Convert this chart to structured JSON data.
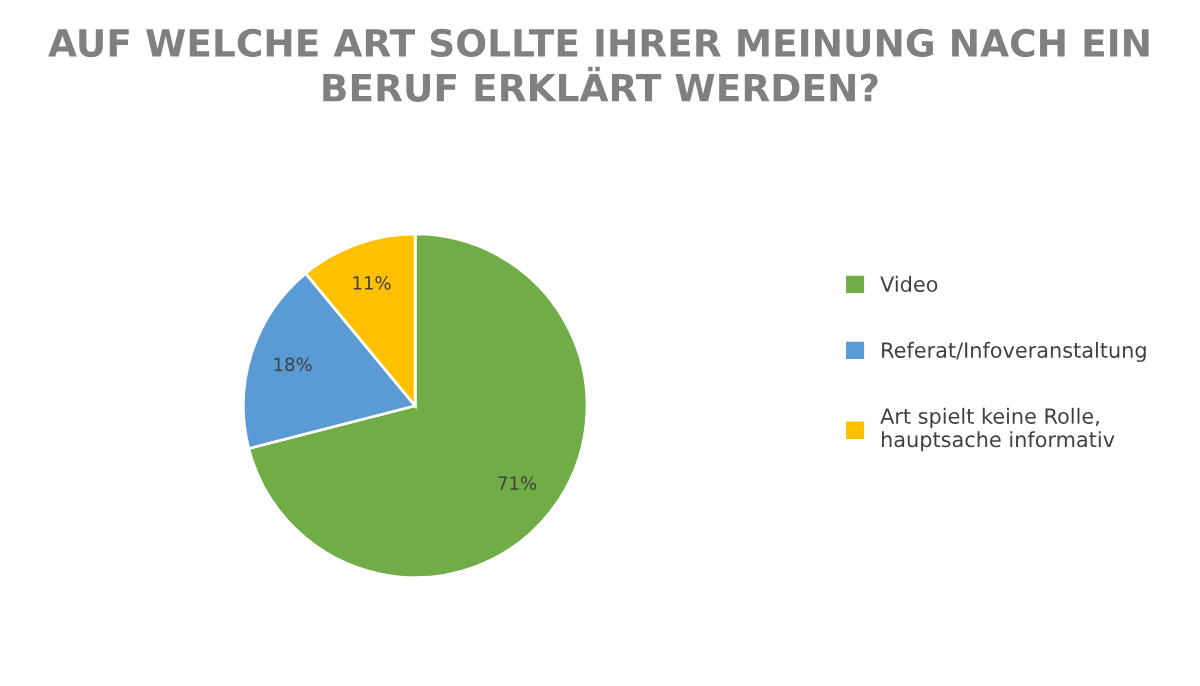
{
  "chart_data": {
    "type": "pie",
    "title": "AUF WELCHE ART SOLLTE IHRER MEINUNG NACH EIN BERUF ERKLÄRT WERDEN?",
    "categories": [
      "Video",
      "Referat/Infoveranstaltung",
      "Art spielt keine Rolle,\nhauptsache informativ"
    ],
    "values": [
      71,
      18,
      11
    ],
    "colors": [
      "#70ad47",
      "#5b9bd5",
      "#ffc000"
    ],
    "value_labels": [
      "71%",
      "18%",
      "11%"
    ],
    "legend": "right"
  }
}
